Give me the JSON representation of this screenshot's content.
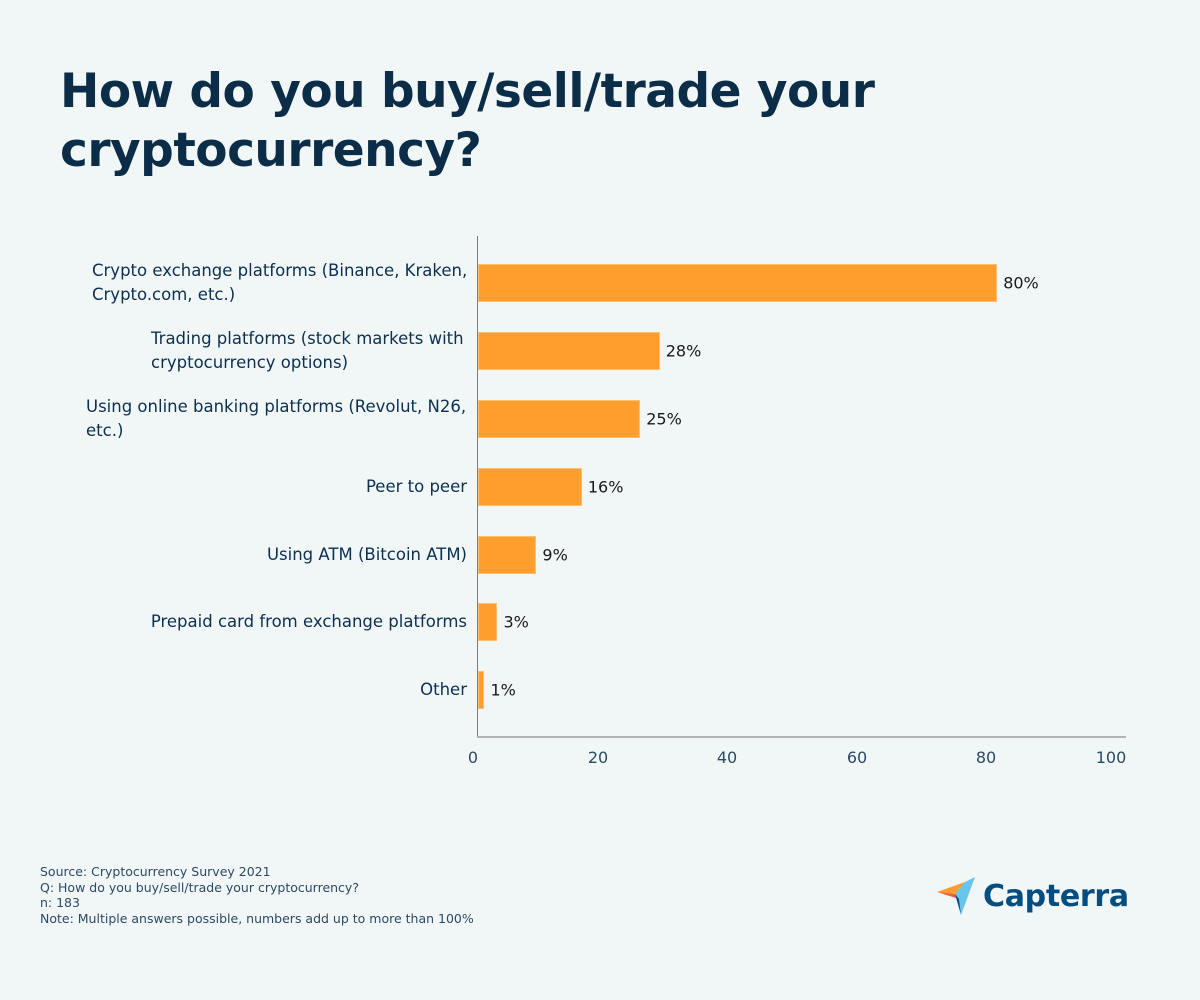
{
  "title": "How do you buy/sell/trade your cryptocurrency?",
  "colors": {
    "background": "#f1f6f7",
    "bar": "#ff9e2c",
    "title": "#0c2d48",
    "text": "#0c3050",
    "logo_text": "#044d80"
  },
  "chart_data": {
    "type": "bar",
    "orientation": "horizontal",
    "title": "How do you buy/sell/trade your cryptocurrency?",
    "xlabel": "",
    "ylabel": "",
    "xlim": [
      0,
      100
    ],
    "x_ticks": [
      "0",
      "20",
      "40",
      "60",
      "80",
      "100"
    ],
    "grid": false,
    "legend": null,
    "categories": [
      "Crypto exchange platforms (Binance, Kraken, Crypto.com, etc.)",
      "Trading platforms (stock markets with cryptocurrency options)",
      "Using online banking platforms (Revolut, N26, etc.)",
      "Peer to peer",
      "Using ATM (Bitcoin ATM)",
      "Prepaid card from exchange platforms",
      "Other"
    ],
    "values": [
      80,
      28,
      25,
      16,
      9,
      3,
      1
    ],
    "value_labels": [
      "80%",
      "28%",
      "25%",
      "16%",
      "9%",
      "3%",
      "1%"
    ]
  },
  "rows": [
    {
      "label": "Crypto exchange platforms (Binance, Kraken,\nCrypto.com, etc.)",
      "value_label": "80%"
    },
    {
      "label": "Trading platforms (stock markets with\ncryptocurrency options)",
      "value_label": "28%"
    },
    {
      "label": "Using online banking platforms (Revolut, N26,\netc.)",
      "value_label": "25%"
    },
    {
      "label": "Peer to peer",
      "value_label": "16%"
    },
    {
      "label": "Using ATM (Bitcoin ATM)",
      "value_label": "9%"
    },
    {
      "label": "Prepaid card from exchange platforms",
      "value_label": "3%"
    },
    {
      "label": "Other",
      "value_label": "1%"
    }
  ],
  "x_ticks": [
    "0",
    "20",
    "40",
    "60",
    "80",
    "100"
  ],
  "footer": {
    "source": "Source: Cryptocurrency Survey 2021",
    "question": "Q: How do you buy/sell/trade your cryptocurrency?",
    "n": "n: 183",
    "note": "Note: Multiple answers possible, numbers add up to more than 100%"
  },
  "logo": {
    "icon": "capterra-arrow-icon",
    "text": "Capterra"
  }
}
